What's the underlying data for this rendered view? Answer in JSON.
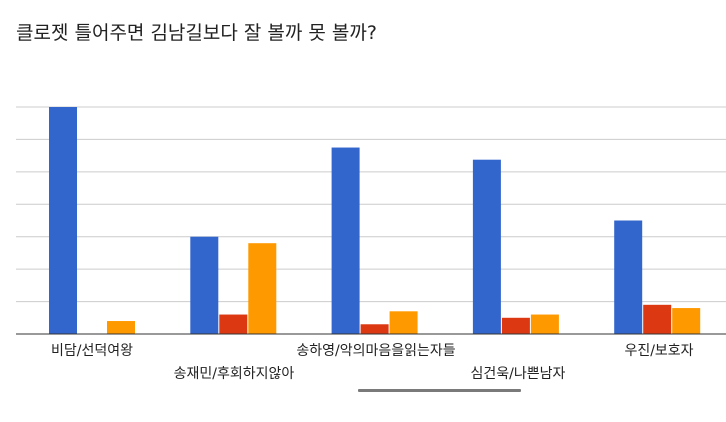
{
  "chart_data": {
    "type": "bar",
    "title": "클로젯 틀어주면 김남길보다 잘 볼까 못 볼까?",
    "categories": [
      "비담/선덕여왕",
      "송재민/후회하지않아",
      "송하영/악의마음을읽는자들",
      "심건욱/나쁜남자",
      "우진/보호자"
    ],
    "series": [
      {
        "values": [
          14,
          6,
          11.5,
          10.75,
          7
        ],
        "color": "#3366cc"
      },
      {
        "values": [
          0,
          1.2,
          0.6,
          1,
          1.8
        ],
        "color": "#dc3912"
      },
      {
        "values": [
          0.8,
          5.6,
          1.4,
          1.2,
          1.6
        ],
        "color": "#ff9900"
      }
    ],
    "ylim": [
      0,
      14
    ],
    "grid": true,
    "legend": "none"
  }
}
